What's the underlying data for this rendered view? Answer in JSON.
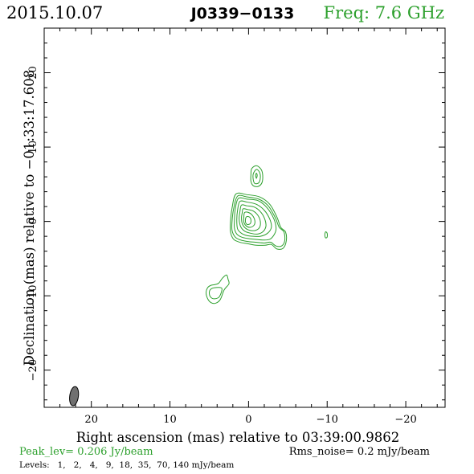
{
  "header": {
    "date": "2015.10.07",
    "source": "J0339−0133",
    "freq": "Freq: 7.6 GHz"
  },
  "colors": {
    "contour": "#2ca02c",
    "axis": "#000000",
    "beam": "#707070"
  },
  "chart_data": {
    "type": "contour",
    "xlabel": "Right ascension (mas) relative to 03:39:00.9862",
    "ylabel": "Declination (mas) relative to −01:33:17.608",
    "xlim": [
      26,
      -25
    ],
    "ylim": [
      -25,
      26
    ],
    "xticks": [
      20,
      10,
      0,
      -10,
      -20
    ],
    "xtick_labels": [
      "20",
      "10",
      "0",
      "−10",
      "−20"
    ],
    "yticks": [
      20,
      10,
      0,
      -10,
      -20
    ],
    "ytick_labels": [
      "20",
      "10",
      "0",
      "−10",
      "−20"
    ],
    "contour_levels_mjy": [
      1,
      2,
      4,
      9,
      18,
      35,
      70,
      140
    ],
    "peak_flux_jy_per_beam": 0.206,
    "rms_noise_mjy_per_beam": 0.2,
    "components": [
      {
        "name": "core",
        "contours": [
          [
            [
              1.6,
              3.7
            ],
            [
              0.2,
              3.6
            ],
            [
              -1.4,
              3.3
            ],
            [
              -2.7,
              2.3
            ],
            [
              -3.6,
              0.6
            ],
            [
              -4.1,
              -0.8
            ],
            [
              -4.7,
              -1.4
            ],
            [
              -4.8,
              -2.6
            ],
            [
              -4.4,
              -3.6
            ],
            [
              -3.6,
              -3.7
            ],
            [
              -2.9,
              -3.1
            ],
            [
              -2.1,
              -3.2
            ],
            [
              -1.0,
              -3.2
            ],
            [
              0.1,
              -3.0
            ],
            [
              1.1,
              -2.8
            ],
            [
              1.9,
              -2.4
            ],
            [
              2.3,
              -1.4
            ],
            [
              2.3,
              0.0
            ],
            [
              2.1,
              1.8
            ]
          ],
          [
            [
              1.4,
              3.4
            ],
            [
              0.2,
              3.3
            ],
            [
              -1.3,
              3.0
            ],
            [
              -2.5,
              2.1
            ],
            [
              -3.4,
              0.5
            ],
            [
              -3.9,
              -0.8
            ],
            [
              -4.5,
              -1.4
            ],
            [
              -4.6,
              -2.6
            ],
            [
              -4.2,
              -3.3
            ],
            [
              -3.5,
              -3.3
            ],
            [
              -2.8,
              -2.8
            ],
            [
              -2.0,
              -2.9
            ],
            [
              -0.9,
              -2.8
            ],
            [
              0.1,
              -2.7
            ],
            [
              1.0,
              -2.5
            ],
            [
              1.7,
              -2.1
            ],
            [
              2.1,
              -1.2
            ],
            [
              2.1,
              0.0
            ],
            [
              1.9,
              1.7
            ]
          ],
          [
            [
              1.3,
              3.1
            ],
            [
              0.2,
              3.0
            ],
            [
              -1.2,
              2.8
            ],
            [
              -2.3,
              1.9
            ],
            [
              -3.2,
              0.4
            ],
            [
              -3.5,
              -0.9
            ],
            [
              -3.3,
              -1.7
            ],
            [
              -2.7,
              -2.4
            ],
            [
              -1.8,
              -2.5
            ],
            [
              -0.8,
              -2.4
            ],
            [
              0.1,
              -2.3
            ],
            [
              0.9,
              -2.1
            ],
            [
              1.5,
              -1.7
            ],
            [
              1.8,
              -0.9
            ],
            [
              1.8,
              0.1
            ],
            [
              1.7,
              1.6
            ]
          ],
          [
            [
              1.1,
              2.7
            ],
            [
              0.2,
              2.6
            ],
            [
              -1.0,
              2.3
            ],
            [
              -2.0,
              1.5
            ],
            [
              -2.7,
              0.3
            ],
            [
              -2.9,
              -0.8
            ],
            [
              -2.4,
              -1.6
            ],
            [
              -1.5,
              -2.0
            ],
            [
              -0.6,
              -2.0
            ],
            [
              0.2,
              -1.9
            ],
            [
              0.9,
              -1.6
            ],
            [
              1.4,
              -1.0
            ],
            [
              1.5,
              0.2
            ],
            [
              1.4,
              1.5
            ]
          ],
          [
            [
              0.9,
              2.2
            ],
            [
              0.2,
              2.1
            ],
            [
              -0.8,
              1.9
            ],
            [
              -1.6,
              1.2
            ],
            [
              -2.1,
              0.2
            ],
            [
              -2.2,
              -0.7
            ],
            [
              -1.8,
              -1.4
            ],
            [
              -1.1,
              -1.7
            ],
            [
              -0.3,
              -1.6
            ],
            [
              0.5,
              -1.3
            ],
            [
              1.0,
              -0.7
            ],
            [
              1.2,
              0.3
            ],
            [
              1.1,
              1.3
            ]
          ],
          [
            [
              0.7,
              1.7
            ],
            [
              0.1,
              1.6
            ],
            [
              -0.6,
              1.4
            ],
            [
              -1.2,
              0.8
            ],
            [
              -1.5,
              0.0
            ],
            [
              -1.4,
              -0.8
            ],
            [
              -0.9,
              -1.2
            ],
            [
              -0.2,
              -1.2
            ],
            [
              0.4,
              -0.9
            ],
            [
              0.8,
              -0.3
            ],
            [
              0.9,
              0.5
            ],
            [
              0.8,
              1.2
            ]
          ],
          [
            [
              0.5,
              1.2
            ],
            [
              0.0,
              1.2
            ],
            [
              -0.5,
              0.8
            ],
            [
              -0.8,
              0.1
            ],
            [
              -0.7,
              -0.5
            ],
            [
              -0.2,
              -0.8
            ],
            [
              0.3,
              -0.6
            ],
            [
              0.6,
              -0.1
            ],
            [
              0.6,
              0.6
            ]
          ],
          [
            [
              0.3,
              0.6
            ],
            [
              -0.1,
              0.6
            ],
            [
              -0.3,
              0.2
            ],
            [
              -0.2,
              -0.3
            ],
            [
              0.2,
              -0.4
            ],
            [
              0.4,
              0.0
            ]
          ]
        ]
      },
      {
        "name": "north-component",
        "contours": [
          [
            [
              -1.0,
              7.5
            ],
            [
              -1.6,
              7.0
            ],
            [
              -1.8,
              6.2
            ],
            [
              -1.7,
              5.2
            ],
            [
              -1.2,
              4.7
            ],
            [
              -0.6,
              4.8
            ],
            [
              -0.3,
              5.4
            ],
            [
              -0.3,
              6.3
            ],
            [
              -0.4,
              7.1
            ]
          ],
          [
            [
              -1.0,
              7.0
            ],
            [
              -1.4,
              6.6
            ],
            [
              -1.5,
              5.9
            ],
            [
              -1.3,
              5.2
            ],
            [
              -0.8,
              5.1
            ],
            [
              -0.6,
              5.6
            ],
            [
              -0.6,
              6.4
            ]
          ],
          [
            [
              -1.0,
              6.5
            ],
            [
              -1.1,
              6.2
            ],
            [
              -1.0,
              5.8
            ],
            [
              -0.9,
              6.2
            ]
          ]
        ]
      },
      {
        "name": "south-component",
        "contours": [
          [
            [
              2.8,
              -7.2
            ],
            [
              2.6,
              -7.8
            ],
            [
              2.5,
              -8.4
            ],
            [
              3.1,
              -9.2
            ],
            [
              3.6,
              -10.5
            ],
            [
              4.2,
              -11.0
            ],
            [
              4.8,
              -10.9
            ],
            [
              5.2,
              -10.4
            ],
            [
              5.4,
              -9.6
            ],
            [
              5.2,
              -8.9
            ],
            [
              4.8,
              -8.6
            ],
            [
              4.3,
              -8.5
            ],
            [
              3.8,
              -8.3
            ],
            [
              3.3,
              -7.6
            ]
          ],
          [
            [
              3.4,
              -9.0
            ],
            [
              3.7,
              -10.1
            ],
            [
              4.3,
              -10.4
            ],
            [
              4.8,
              -10.2
            ],
            [
              5.0,
              -9.6
            ],
            [
              4.8,
              -9.1
            ],
            [
              4.2,
              -8.9
            ]
          ]
        ]
      },
      {
        "name": "west-spot",
        "contours": [
          [
            [
              -9.8,
              -1.4
            ],
            [
              -10.0,
              -1.6
            ],
            [
              -10.0,
              -2.1
            ],
            [
              -9.8,
              -2.2
            ],
            [
              -9.7,
              -1.8
            ]
          ]
        ]
      }
    ],
    "beam": {
      "ra": 22.2,
      "dec": -23.5,
      "major": 2.6,
      "minor": 1.1,
      "pa_deg": 8
    }
  },
  "footer": {
    "peak": "Peak_lev=  0.206 Jy/beam",
    "rms": "Rms_noise=  0.2 mJy/beam",
    "levels": "Levels:   1,   2,   4,   9,  18,  35,  70, 140 mJy/beam"
  }
}
